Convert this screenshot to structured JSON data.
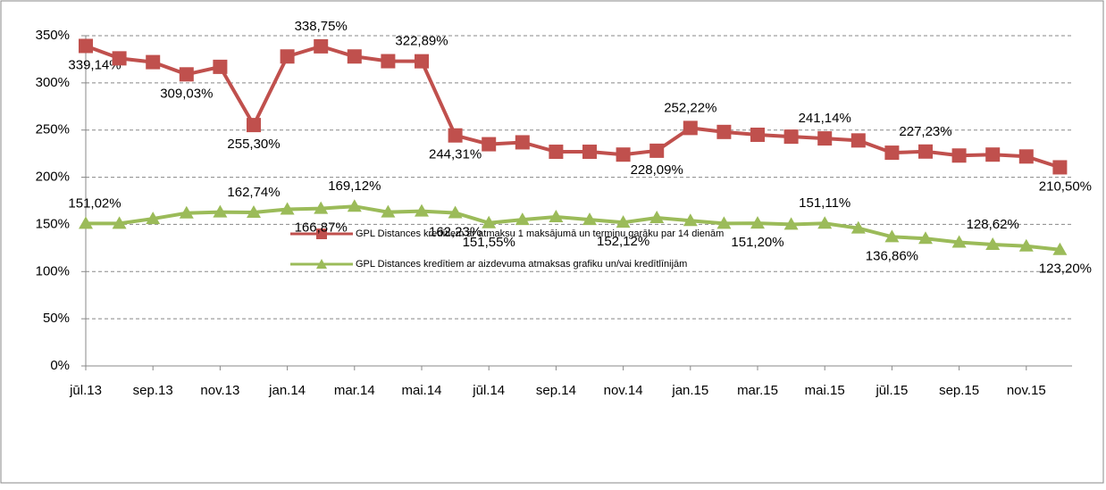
{
  "chart_data": {
    "type": "line",
    "categories": [
      "jūl.13",
      null,
      "sep.13",
      null,
      "nov.13",
      null,
      "jan.14",
      null,
      "mar.14",
      null,
      "mai.14",
      null,
      "jūl.14",
      null,
      "sep.14",
      null,
      "nov.14",
      null,
      "jan.15",
      null,
      "mar.15",
      null,
      "mai.15",
      null,
      "jūl.15",
      null,
      "sep.15",
      null,
      "nov.15",
      null
    ],
    "series": [
      {
        "name": "GPL Distances kredītiem ar atmaksu 1 maksājumā un termiņu garāku par 14 dienām",
        "color": "#c0504d",
        "values": [
          339.14,
          326,
          322,
          309.03,
          317,
          255.3,
          328,
          338.75,
          328,
          323,
          322.89,
          244.31,
          235,
          237,
          227,
          227,
          224,
          228.09,
          252.22,
          248,
          245,
          243,
          241.14,
          239,
          226,
          227.23,
          223,
          224,
          222,
          210.5
        ],
        "value_labels": [
          "339,14%",
          null,
          null,
          "309,03%",
          null,
          "255,30%",
          null,
          "338,75%",
          null,
          null,
          "322,89%",
          "244,31%",
          null,
          null,
          null,
          null,
          null,
          "228,09%",
          "252,22%",
          null,
          null,
          null,
          "241,14%",
          null,
          null,
          "227,23%",
          null,
          null,
          null,
          "210,50%"
        ]
      },
      {
        "name": "GPL Distances kredītiem ar aizdevuma atmaksas grafiku un/vai kredītlīnijām",
        "color": "#9bbb59",
        "values": [
          151.02,
          151,
          156,
          162,
          163,
          162.74,
          166,
          166.87,
          169.12,
          163,
          164,
          162.23,
          151.55,
          155,
          158,
          155,
          152.12,
          157,
          154,
          151,
          151.2,
          150,
          151.11,
          146,
          136.86,
          135,
          131,
          128.62,
          127,
          123.2
        ],
        "value_labels": [
          "151,02%",
          null,
          null,
          null,
          null,
          "162,74%",
          null,
          "166,87%",
          "169,12%",
          null,
          null,
          "162,23%",
          "151,55%",
          null,
          null,
          null,
          "152,12%",
          null,
          null,
          null,
          "151,20%",
          null,
          "151,11%",
          null,
          "136,86%",
          null,
          null,
          "128,62%",
          null,
          "123,20%"
        ]
      }
    ],
    "ylim": [
      0,
      350
    ],
    "yticks": [
      {
        "value": 0,
        "label": "0%"
      },
      {
        "value": 50,
        "label": "50%"
      },
      {
        "value": 100,
        "label": "100%"
      },
      {
        "value": 150,
        "label": "150%"
      },
      {
        "value": 200,
        "label": "200%"
      },
      {
        "value": 250,
        "label": "250%"
      },
      {
        "value": 300,
        "label": "300%"
      },
      {
        "value": 350,
        "label": "350%"
      }
    ],
    "grid": true,
    "legend": "bottom"
  }
}
